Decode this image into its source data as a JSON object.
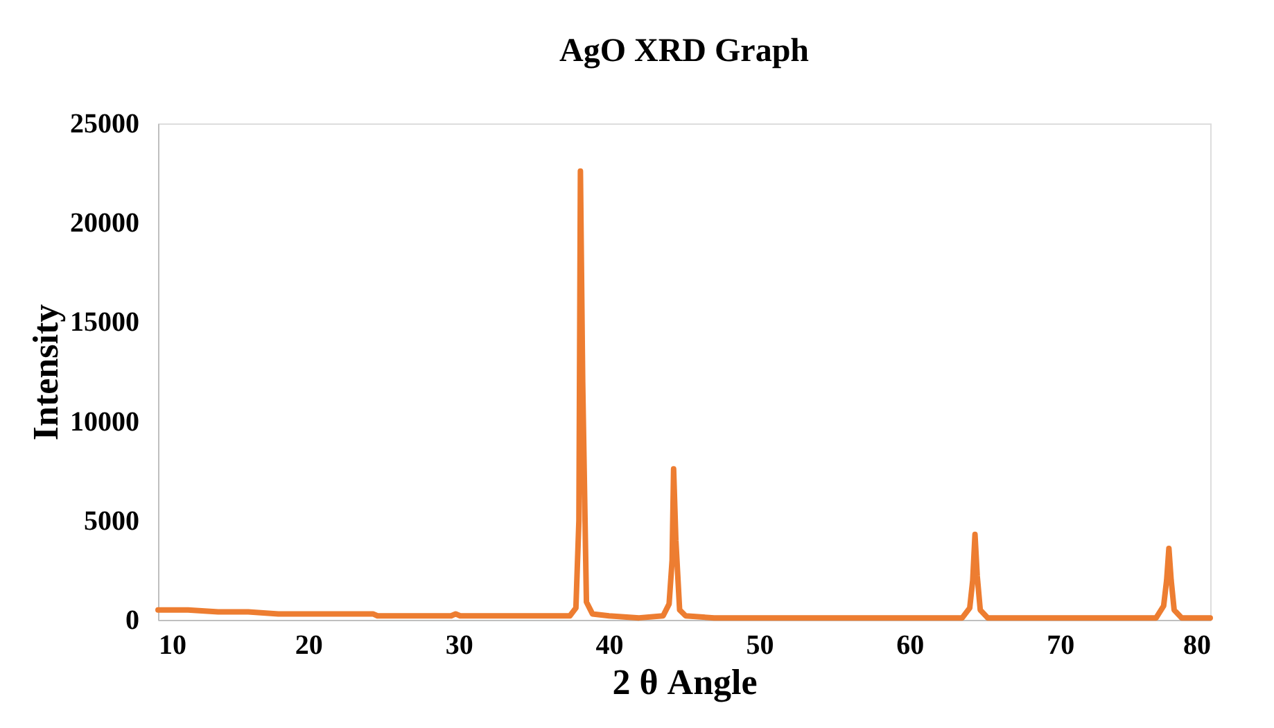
{
  "chart_data": {
    "type": "line",
    "title": "AgO XRD Graph",
    "xlabel": "2 θ Angle",
    "ylabel": "Intensity",
    "xlim": [
      10,
      80
    ],
    "xticks": [
      10,
      20,
      30,
      40,
      50,
      60,
      70,
      80
    ],
    "ylim": [
      0,
      25000
    ],
    "yticks": [
      0,
      5000,
      10000,
      15000,
      20000,
      25000
    ],
    "grid": false,
    "marker": "none",
    "line_style": "solid",
    "series": [
      {
        "color": "#ed7d31",
        "x": [
          10,
          12,
          14,
          16,
          18,
          20,
          22,
          24,
          24.3,
          24.6,
          26,
          28,
          29.5,
          29.8,
          30.1,
          32,
          34,
          36,
          37.4,
          37.8,
          38.0,
          38.1,
          38.25,
          38.5,
          38.9,
          40,
          42,
          43.6,
          44.0,
          44.2,
          44.3,
          44.45,
          44.7,
          45.1,
          47,
          50,
          53,
          56,
          60,
          63.5,
          64.0,
          64.2,
          64.35,
          64.5,
          64.7,
          65.2,
          68,
          72,
          76.4,
          76.9,
          77.1,
          77.25,
          77.4,
          77.6,
          78.1,
          80
        ],
        "values": [
          500,
          500,
          400,
          400,
          300,
          300,
          300,
          300,
          300,
          200,
          200,
          200,
          200,
          300,
          200,
          200,
          200,
          200,
          200,
          600,
          5000,
          22600,
          12000,
          900,
          300,
          200,
          100,
          200,
          800,
          3000,
          7600,
          4000,
          500,
          200,
          100,
          100,
          100,
          100,
          100,
          100,
          600,
          2000,
          4300,
          2200,
          500,
          100,
          100,
          100,
          100,
          700,
          2000,
          3600,
          2000,
          500,
          100,
          100
        ]
      }
    ]
  }
}
